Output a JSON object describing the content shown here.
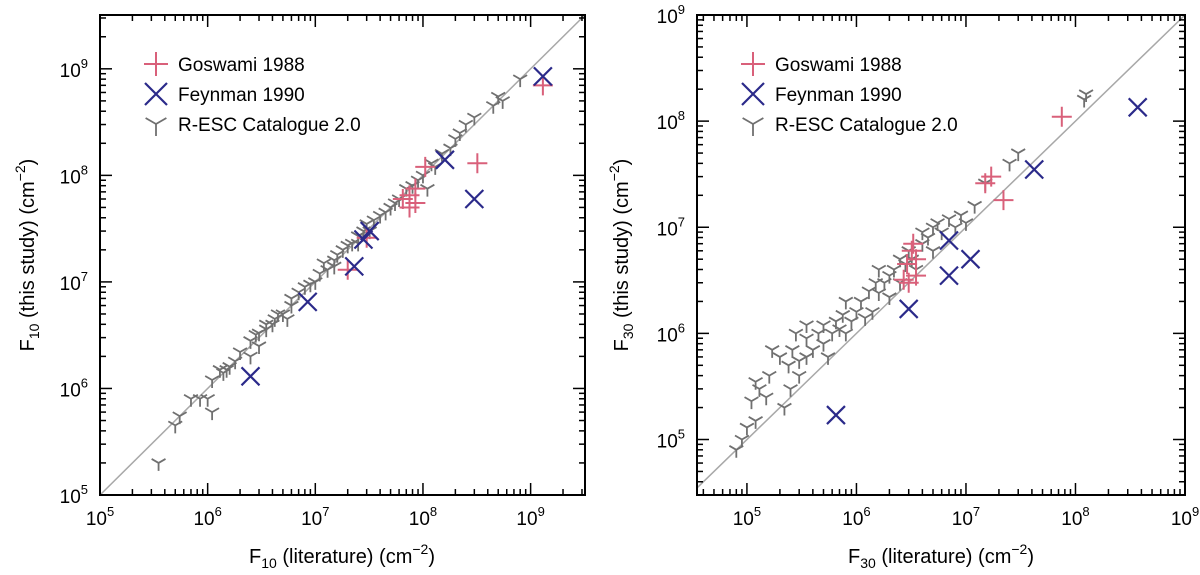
{
  "colors": {
    "goswami": "#d9607a",
    "feynman": "#2b2a8a",
    "resc": "#707070",
    "identity": "#a8a8a8",
    "frame": "#000000"
  },
  "chart_data": [
    {
      "type": "scatter",
      "xscale": "log",
      "yscale": "log",
      "xlim": [
        100000.0,
        3200000000.0
      ],
      "ylim": [
        100000.0,
        3200000000.0
      ],
      "title": "",
      "xlabel": {
        "main": "F",
        "sub": "10",
        "tail": " (literature) (cm",
        "sup": "−2",
        "end": ")"
      },
      "ylabel": {
        "main": "F",
        "sub": "10",
        "tail": " (this study) (cm",
        "sup": "−2",
        "end": ")"
      },
      "xticks": [
        {
          "base": "10",
          "exp": "5",
          "value": 100000.0
        },
        {
          "base": "10",
          "exp": "6",
          "value": 1000000.0
        },
        {
          "base": "10",
          "exp": "7",
          "value": 10000000.0
        },
        {
          "base": "10",
          "exp": "8",
          "value": 100000000.0
        },
        {
          "base": "10",
          "exp": "9",
          "value": 1000000000.0
        }
      ],
      "yticks": [
        {
          "base": "10",
          "exp": "5",
          "value": 100000.0
        },
        {
          "base": "10",
          "exp": "6",
          "value": 1000000.0
        },
        {
          "base": "10",
          "exp": "7",
          "value": 10000000.0
        },
        {
          "base": "10",
          "exp": "8",
          "value": 100000000.0
        },
        {
          "base": "10",
          "exp": "9",
          "value": 1000000000.0
        }
      ],
      "identity_line": true,
      "legend": [
        {
          "name": "Goswami 1988",
          "marker": "plus",
          "color_key": "goswami"
        },
        {
          "name": "Feynman 1990",
          "marker": "cross",
          "color_key": "feynman"
        },
        {
          "name": "R-ESC Catalogue 2.0",
          "marker": "tri",
          "color_key": "resc"
        }
      ],
      "legend_position": "top-left",
      "series": [
        {
          "name": "R-ESC Catalogue 2.0",
          "marker": "tri",
          "color_key": "resc",
          "points": [
            [
              350000.0,
              200000.0
            ],
            [
              500000.0,
              450000.0
            ],
            [
              550000.0,
              550000.0
            ],
            [
              700000.0,
              800000.0
            ],
            [
              850000.0,
              800000.0
            ],
            [
              1000000.0,
              800000.0
            ],
            [
              1100000.0,
              600000.0
            ],
            [
              1100000.0,
              1200000.0
            ],
            [
              1300000.0,
              1500000.0
            ],
            [
              1400000.0,
              1400000.0
            ],
            [
              1600000.0,
              1600000.0
            ],
            [
              1800000.0,
              1800000.0
            ],
            [
              2000000.0,
              2200000.0
            ],
            [
              2500000.0,
              2800000.0
            ],
            [
              2800000.0,
              3200000.0
            ],
            [
              3000000.0,
              3300000.0
            ],
            [
              3500000.0,
              3600000.0
            ],
            [
              3500000.0,
              4000000.0
            ],
            [
              4000000.0,
              4000000.0
            ],
            [
              4500000.0,
              5000000.0
            ],
            [
              5000000.0,
              5000000.0
            ],
            [
              5500000.0,
              4500000.0
            ],
            [
              6000000.0,
              6000000.0
            ],
            [
              6000000.0,
              7000000.0
            ],
            [
              7000000.0,
              8000000.0
            ],
            [
              9000000.0,
              9500000.0
            ],
            [
              10000000.0,
              10000000.0
            ],
            [
              11000000.0,
              12000000.0
            ],
            [
              12000000.0,
              15000000.0
            ],
            [
              13000000.0,
              13000000.0
            ],
            [
              15000000.0,
              16000000.0
            ],
            [
              16000000.0,
              18000000.0
            ],
            [
              18000000.0,
              20000000.0
            ],
            [
              20000000.0,
              22000000.0
            ],
            [
              22000000.0,
              23000000.0
            ],
            [
              25000000.0,
              27000000.0
            ],
            [
              28000000.0,
              30000000.0
            ],
            [
              30000000.0,
              35000000.0
            ],
            [
              32000000.0,
              30000000.0
            ],
            [
              35000000.0,
              38000000.0
            ],
            [
              40000000.0,
              42000000.0
            ],
            [
              45000000.0,
              45000000.0
            ],
            [
              50000000.0,
              50000000.0
            ],
            [
              55000000.0,
              55000000.0
            ],
            [
              60000000.0,
              60000000.0
            ],
            [
              70000000.0,
              75000000.0
            ],
            [
              80000000.0,
              80000000.0
            ],
            [
              90000000.0,
              90000000.0
            ],
            [
              100000000.0,
              100000000.0
            ],
            [
              110000000.0,
              75000000.0
            ],
            [
              120000000.0,
              130000000.0
            ],
            [
              130000000.0,
              120000000.0
            ],
            [
              150000000.0,
              160000000.0
            ],
            [
              180000000.0,
              180000000.0
            ],
            [
              200000000.0,
              220000000.0
            ],
            [
              220000000.0,
              250000000.0
            ],
            [
              250000000.0,
              300000000.0
            ],
            [
              300000000.0,
              350000000.0
            ],
            [
              450000000.0,
              450000000.0
            ],
            [
              500000000.0,
              550000000.0
            ],
            [
              550000000.0,
              500000000.0
            ],
            [
              800000000.0,
              800000000.0
            ],
            [
              2500000.0,
              2000000.0
            ],
            [
              1500000.0,
              1500000.0
            ],
            [
              3000000.0,
              2500000.0
            ],
            [
              4200000.0,
              4500000.0
            ],
            [
              15000000.0,
              14000000.0
            ],
            [
              25000000.0,
              23000000.0
            ],
            [
              8000000.0,
              9000000.0
            ]
          ]
        },
        {
          "name": "Goswami 1988",
          "marker": "plus",
          "color_key": "goswami",
          "points": [
            [
              20000000.0,
              13000000.0
            ],
            [
              30000000.0,
              26000000.0
            ],
            [
              65000000.0,
              60000000.0
            ],
            [
              75000000.0,
              65000000.0
            ],
            [
              75000000.0,
              50000000.0
            ],
            [
              85000000.0,
              75000000.0
            ],
            [
              85000000.0,
              55000000.0
            ],
            [
              105000000.0,
              120000000.0
            ],
            [
              320000000.0,
              130000000.0
            ],
            [
              1300000000.0,
              700000000.0
            ]
          ]
        },
        {
          "name": "Feynman 1990",
          "marker": "cross",
          "color_key": "feynman",
          "points": [
            [
              2500000.0,
              1300000.0
            ],
            [
              8500000.0,
              6500000.0
            ],
            [
              23000000.0,
              14000000.0
            ],
            [
              28000000.0,
              25000000.0
            ],
            [
              32000000.0,
              30000000.0
            ],
            [
              160000000.0,
              140000000.0
            ],
            [
              300000000.0,
              60000000.0
            ],
            [
              1300000000.0,
              850000000.0
            ]
          ]
        }
      ]
    },
    {
      "type": "scatter",
      "xscale": "log",
      "yscale": "log",
      "xlim": [
        35000.0,
        1000000000.0
      ],
      "ylim": [
        30000.0,
        1000000000.0
      ],
      "title": "",
      "xlabel": {
        "main": "F",
        "sub": "30",
        "tail": " (literature) (cm",
        "sup": "−2",
        "end": ")"
      },
      "ylabel": {
        "main": "F",
        "sub": "30",
        "tail": " (this study) (cm",
        "sup": "−2",
        "end": ")"
      },
      "xticks": [
        {
          "base": "10",
          "exp": "5",
          "value": 100000.0
        },
        {
          "base": "10",
          "exp": "6",
          "value": 1000000.0
        },
        {
          "base": "10",
          "exp": "7",
          "value": 10000000.0
        },
        {
          "base": "10",
          "exp": "8",
          "value": 100000000.0
        },
        {
          "base": "10",
          "exp": "9",
          "value": 1000000000.0
        }
      ],
      "yticks": [
        {
          "base": "10",
          "exp": "5",
          "value": 100000.0
        },
        {
          "base": "10",
          "exp": "6",
          "value": 1000000.0
        },
        {
          "base": "10",
          "exp": "7",
          "value": 10000000.0
        },
        {
          "base": "10",
          "exp": "8",
          "value": 100000000.0
        },
        {
          "base": "10",
          "exp": "9",
          "value": 1000000000.0
        }
      ],
      "identity_line": true,
      "legend": [
        {
          "name": "Goswami 1988",
          "marker": "plus",
          "color_key": "goswami"
        },
        {
          "name": "Feynman 1990",
          "marker": "cross",
          "color_key": "feynman"
        },
        {
          "name": "R-ESC Catalogue 2.0",
          "marker": "tri",
          "color_key": "resc"
        }
      ],
      "legend_position": "top-left",
      "series": [
        {
          "name": "R-ESC Catalogue 2.0",
          "marker": "tri",
          "color_key": "resc",
          "points": [
            [
              80000.0,
              80000.0
            ],
            [
              90000.0,
              100000.0
            ],
            [
              100000.0,
              130000.0
            ],
            [
              110000.0,
              230000.0
            ],
            [
              120000.0,
              150000.0
            ],
            [
              120000.0,
              350000.0
            ],
            [
              130000.0,
              300000.0
            ],
            [
              150000.0,
              250000.0
            ],
            [
              160000.0,
              400000.0
            ],
            [
              170000.0,
              700000.0
            ],
            [
              200000.0,
              600000.0
            ],
            [
              220000.0,
              200000.0
            ],
            [
              240000.0,
              500000.0
            ],
            [
              250000.0,
              300000.0
            ],
            [
              260000.0,
              700000.0
            ],
            [
              280000.0,
              1000000.0
            ],
            [
              300000.0,
              400000.0
            ],
            [
              300000.0,
              550000.0
            ],
            [
              350000.0,
              600000.0
            ],
            [
              350000.0,
              900000.0
            ],
            [
              400000.0,
              700000.0
            ],
            [
              450000.0,
              1000000.0
            ],
            [
              500000.0,
              800000.0
            ],
            [
              500000.0,
              1200000.0
            ],
            [
              550000.0,
              600000.0
            ],
            [
              600000.0,
              1000000.0
            ],
            [
              650000.0,
              1300000.0
            ],
            [
              700000.0,
              1100000.0
            ],
            [
              750000.0,
              1500000.0
            ],
            [
              800000.0,
              1000000.0
            ],
            [
              900000.0,
              1300000.0
            ],
            [
              1000000.0,
              1600000.0
            ],
            [
              1100000.0,
              2000000.0
            ],
            [
              1200000.0,
              1400000.0
            ],
            [
              1300000.0,
              2500000.0
            ],
            [
              1400000.0,
              1600000.0
            ],
            [
              1500000.0,
              3000000.0
            ],
            [
              1600000.0,
              2400000.0
            ],
            [
              1800000.0,
              3000000.0
            ],
            [
              2000000.0,
              2200000.0
            ],
            [
              2000000.0,
              3500000.0
            ],
            [
              2200000.0,
              4000000.0
            ],
            [
              2500000.0,
              3000000.0
            ],
            [
              2500000.0,
              5000000.0
            ],
            [
              2800000.0,
              4500000.0
            ],
            [
              3000000.0,
              6000000.0
            ],
            [
              3200000.0,
              5000000.0
            ],
            [
              3500000.0,
              4000000.0
            ],
            [
              4000000.0,
              7000000.0
            ],
            [
              4000000.0,
              9000000.0
            ],
            [
              4500000.0,
              8000000.0
            ],
            [
              5000000.0,
              6000000.0
            ],
            [
              5000000.0,
              10000000.0
            ],
            [
              5500000.0,
              11000000.0
            ],
            [
              6000000.0,
              9000000.0
            ],
            [
              7000000.0,
              12000000.0
            ],
            [
              8000000.0,
              10000000.0
            ],
            [
              9000000.0,
              13000000.0
            ],
            [
              10000000.0,
              11000000.0
            ],
            [
              12000000.0,
              16000000.0
            ],
            [
              15000000.0,
              26000000.0
            ],
            [
              25000000.0,
              40000000.0
            ],
            [
              30000000.0,
              50000000.0
            ],
            [
              120000000.0,
              160000000.0
            ],
            [
              125000000.0,
              180000000.0
            ],
            [
              350000.0,
              1200000.0
            ],
            [
              800000.0,
              2000000.0
            ],
            [
              1600000.0,
              4000000.0
            ]
          ]
        },
        {
          "name": "Goswami 1988",
          "marker": "plus",
          "color_key": "goswami",
          "points": [
            [
              2700000.0,
              3200000.0
            ],
            [
              2900000.0,
              4500000.0
            ],
            [
              3000000.0,
              3000000.0
            ],
            [
              3200000.0,
              6000000.0
            ],
            [
              3300000.0,
              7000000.0
            ],
            [
              3500000.0,
              5000000.0
            ],
            [
              3500000.0,
              3500000.0
            ],
            [
              15000000.0,
              26000000.0
            ],
            [
              17000000.0,
              30000000.0
            ],
            [
              22000000.0,
              18000000.0
            ],
            [
              75000000.0,
              110000000.0
            ]
          ]
        },
        {
          "name": "Feynman 1990",
          "marker": "cross",
          "color_key": "feynman",
          "points": [
            [
              650000.0,
              170000.0
            ],
            [
              3000000.0,
              1700000.0
            ],
            [
              7000000.0,
              3500000.0
            ],
            [
              7000000.0,
              7500000.0
            ],
            [
              11000000.0,
              5000000.0
            ],
            [
              42000000.0,
              35000000.0
            ],
            [
              370000000.0,
              135000000.0
            ]
          ]
        }
      ]
    }
  ]
}
